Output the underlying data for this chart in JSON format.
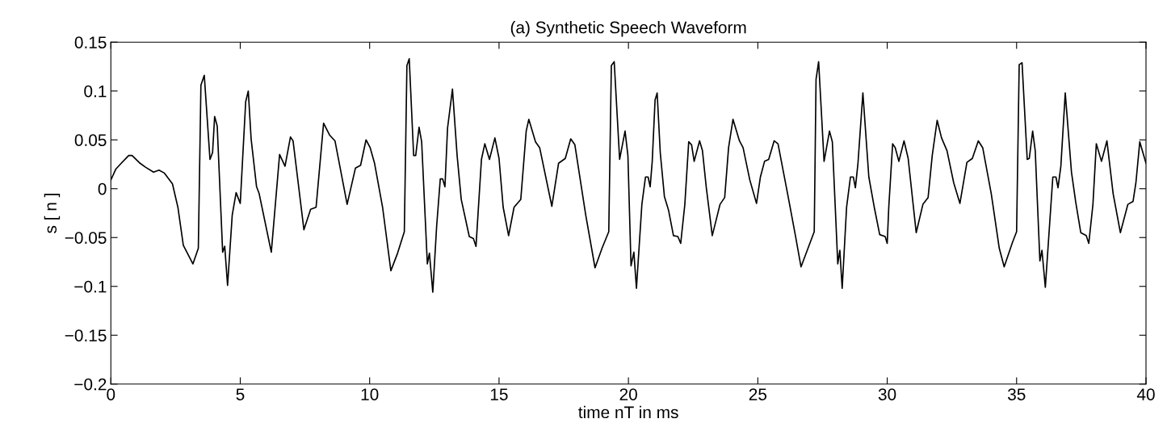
{
  "chart_data": {
    "type": "line",
    "title": "(a) Synthetic Speech Waveform",
    "xlabel": "time nT in ms",
    "ylabel": "s [ n ]",
    "xlim": [
      0,
      40
    ],
    "ylim": [
      -0.2,
      0.15
    ],
    "xticks": [
      0,
      5,
      10,
      15,
      20,
      25,
      30,
      35,
      40
    ],
    "yticks": [
      {
        "value": -0.2,
        "label": "−0.2"
      },
      {
        "value": -0.15,
        "label": "−0.15"
      },
      {
        "value": -0.1,
        "label": "−0.1"
      },
      {
        "value": -0.05,
        "label": "−0.05"
      },
      0,
      0.05,
      0.1,
      0.15
    ],
    "grid": false,
    "legend": false,
    "marker": "none",
    "line_style": "solid",
    "series": [
      {
        "color": "#000000",
        "x": [
          0,
          0.19,
          0.4,
          0.69,
          0.82,
          1.13,
          1.34,
          1.65,
          1.86,
          2.07,
          2.38,
          2.59,
          2.8,
          3.17,
          3.38,
          3.48,
          3.61,
          3.83,
          3.93,
          4.01,
          4.11,
          4.32,
          4.4,
          4.51,
          4.69,
          4.84,
          5.0,
          5.21,
          5.31,
          5.42,
          5.63,
          5.73,
          6.2,
          6.52,
          6.73,
          6.94,
          7.04,
          7.46,
          7.72,
          7.93,
          8.22,
          8.45,
          8.66,
          9.13,
          9.45,
          9.65,
          9.86,
          10.02,
          10.19,
          10.5,
          10.82,
          11.08,
          11.34,
          11.44,
          11.53,
          11.7,
          11.78,
          11.91,
          12.01,
          12.23,
          12.31,
          12.44,
          12.59,
          12.73,
          12.82,
          12.91,
          13.01,
          13.2,
          13.38,
          13.54,
          13.85,
          14.01,
          14.11,
          14.32,
          14.45,
          14.63,
          14.84,
          15.0,
          15.16,
          15.37,
          15.58,
          15.84,
          16.05,
          16.15,
          16.41,
          16.57,
          17.04,
          17.3,
          17.56,
          17.77,
          17.93,
          18.35,
          18.71,
          18.98,
          19.24,
          19.34,
          19.45,
          19.66,
          19.87,
          19.98,
          20.1,
          20.21,
          20.31,
          20.52,
          20.66,
          20.76,
          20.84,
          20.92,
          21.03,
          21.11,
          21.23,
          21.39,
          21.55,
          21.74,
          21.91,
          22.02,
          22.18,
          22.33,
          22.44,
          22.54,
          22.75,
          22.86,
          23.01,
          23.24,
          23.54,
          23.72,
          23.87,
          24.04,
          24.29,
          24.43,
          24.69,
          24.95,
          25.1,
          25.26,
          25.42,
          25.63,
          25.78,
          26.15,
          26.46,
          26.67,
          26.94,
          27.18,
          27.25,
          27.35,
          27.56,
          27.77,
          27.88,
          28.09,
          28.17,
          28.26,
          28.43,
          28.58,
          28.69,
          28.77,
          28.87,
          29.06,
          29.29,
          29.5,
          29.71,
          29.92,
          30.0,
          30.06,
          30.21,
          30.31,
          30.45,
          30.65,
          30.81,
          31.12,
          31.38,
          31.58,
          31.74,
          31.93,
          32.1,
          32.31,
          32.57,
          32.81,
          33.08,
          33.29,
          33.52,
          33.69,
          34.02,
          34.33,
          34.52,
          34.84,
          35.0,
          35.1,
          35.21,
          35.41,
          35.49,
          35.62,
          35.72,
          35.9,
          35.98,
          36.11,
          36.4,
          36.52,
          36.6,
          36.71,
          36.88,
          37.12,
          37.28,
          37.48,
          37.69,
          37.79,
          37.95,
          38.08,
          38.28,
          38.49,
          38.73,
          39.01,
          39.3,
          39.5,
          39.61,
          39.76,
          40.0
        ],
        "values": [
          0.009,
          0.02,
          0.026,
          0.034,
          0.034,
          0.026,
          0.022,
          0.017,
          0.019,
          0.016,
          0.005,
          -0.019,
          -0.058,
          -0.077,
          -0.061,
          0.106,
          0.116,
          0.03,
          0.037,
          0.074,
          0.064,
          -0.065,
          -0.059,
          -0.099,
          -0.027,
          -0.004,
          -0.015,
          0.089,
          0.1,
          0.051,
          0.002,
          -0.005,
          -0.065,
          0.035,
          0.023,
          0.053,
          0.049,
          -0.042,
          -0.021,
          -0.019,
          0.067,
          0.055,
          0.049,
          -0.016,
          0.021,
          0.024,
          0.05,
          0.042,
          0.026,
          -0.019,
          -0.084,
          -0.066,
          -0.044,
          0.126,
          0.133,
          0.034,
          0.034,
          0.063,
          0.048,
          -0.077,
          -0.066,
          -0.106,
          -0.038,
          0.01,
          0.01,
          0.002,
          0.062,
          0.102,
          0.034,
          -0.011,
          -0.049,
          -0.051,
          -0.059,
          0.03,
          0.046,
          0.03,
          0.052,
          0.031,
          -0.019,
          -0.048,
          -0.019,
          -0.011,
          0.059,
          0.071,
          0.048,
          0.042,
          -0.018,
          0.026,
          0.031,
          0.051,
          0.045,
          -0.027,
          -0.081,
          -0.061,
          -0.044,
          0.126,
          0.13,
          0.03,
          0.059,
          0.034,
          -0.079,
          -0.065,
          -0.102,
          -0.016,
          0.012,
          0.012,
          0.002,
          0.028,
          0.091,
          0.098,
          0.037,
          -0.008,
          -0.022,
          -0.048,
          -0.049,
          -0.056,
          -0.016,
          0.048,
          0.045,
          0.028,
          0.049,
          0.039,
          0.001,
          -0.048,
          -0.016,
          -0.009,
          0.042,
          0.071,
          0.049,
          0.042,
          0.009,
          -0.015,
          0.012,
          0.028,
          0.03,
          0.049,
          0.046,
          -0.005,
          -0.049,
          -0.08,
          -0.061,
          -0.044,
          0.112,
          0.13,
          0.028,
          0.059,
          0.048,
          -0.077,
          -0.063,
          -0.102,
          -0.019,
          0.012,
          0.012,
          0.001,
          0.026,
          0.098,
          0.012,
          -0.019,
          -0.047,
          -0.049,
          -0.056,
          -0.019,
          0.046,
          0.042,
          0.028,
          0.049,
          0.031,
          -0.045,
          -0.016,
          -0.009,
          0.034,
          0.07,
          0.052,
          0.039,
          0.006,
          -0.015,
          0.027,
          0.031,
          0.049,
          0.042,
          -0.005,
          -0.061,
          -0.08,
          -0.055,
          -0.044,
          0.127,
          0.129,
          0.03,
          0.031,
          0.059,
          0.039,
          -0.074,
          -0.063,
          -0.101,
          0.012,
          0.012,
          0.001,
          0.023,
          0.098,
          0.017,
          -0.013,
          -0.045,
          -0.048,
          -0.056,
          -0.016,
          0.046,
          0.028,
          0.049,
          -0.005,
          -0.045,
          -0.016,
          -0.013,
          0.006,
          0.048,
          0.026
        ]
      }
    ]
  }
}
